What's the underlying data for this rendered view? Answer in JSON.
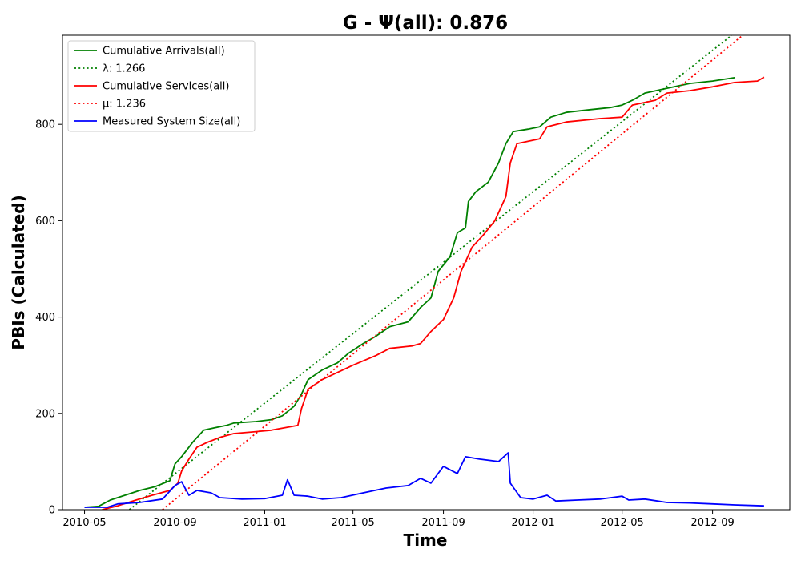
{
  "chart_data": {
    "type": "line",
    "title": "G -  Ψ(all): 0.876",
    "xlabel": "Time",
    "ylabel": "PBIs (Calculated)",
    "xlim": [
      "2010-04-01",
      "2012-12-15"
    ],
    "ylim": [
      0,
      985
    ],
    "x_ticks": [
      "2010-05",
      "2010-09",
      "2011-01",
      "2011-05",
      "2011-09",
      "2012-01",
      "2012-05",
      "2012-09"
    ],
    "y_ticks": [
      0,
      200,
      400,
      600,
      800
    ],
    "grid": false,
    "legend_position": "upper left",
    "series": [
      {
        "name": "Cumulative Arrivals(all)",
        "color": "#008000",
        "style": "solid",
        "points": [
          [
            "2010-05-01",
            5
          ],
          [
            "2010-05-20",
            7
          ],
          [
            "2010-06-05",
            20
          ],
          [
            "2010-06-25",
            30
          ],
          [
            "2010-07-15",
            40
          ],
          [
            "2010-08-05",
            48
          ],
          [
            "2010-08-25",
            60
          ],
          [
            "2010-09-01",
            95
          ],
          [
            "2010-09-10",
            110
          ],
          [
            "2010-09-25",
            140
          ],
          [
            "2010-10-10",
            165
          ],
          [
            "2010-10-25",
            170
          ],
          [
            "2010-11-10",
            175
          ],
          [
            "2010-11-20",
            180
          ],
          [
            "2010-12-20",
            183
          ],
          [
            "2011-01-10",
            187
          ],
          [
            "2011-01-25",
            195
          ],
          [
            "2011-02-10",
            215
          ],
          [
            "2011-02-20",
            240
          ],
          [
            "2011-03-01",
            270
          ],
          [
            "2011-03-20",
            290
          ],
          [
            "2011-04-10",
            305
          ],
          [
            "2011-04-25",
            325
          ],
          [
            "2011-05-15",
            345
          ],
          [
            "2011-06-01",
            360
          ],
          [
            "2011-06-20",
            380
          ],
          [
            "2011-07-15",
            390
          ],
          [
            "2011-08-01",
            420
          ],
          [
            "2011-08-15",
            440
          ],
          [
            "2011-08-25",
            495
          ],
          [
            "2011-09-10",
            525
          ],
          [
            "2011-09-20",
            575
          ],
          [
            "2011-10-01",
            585
          ],
          [
            "2011-10-05",
            640
          ],
          [
            "2011-10-15",
            660
          ],
          [
            "2011-11-01",
            680
          ],
          [
            "2011-11-15",
            720
          ],
          [
            "2011-11-25",
            760
          ],
          [
            "2011-12-05",
            785
          ],
          [
            "2011-12-25",
            790
          ],
          [
            "2012-01-10",
            795
          ],
          [
            "2012-01-25",
            815
          ],
          [
            "2012-02-15",
            825
          ],
          [
            "2012-03-15",
            830
          ],
          [
            "2012-04-15",
            835
          ],
          [
            "2012-05-01",
            840
          ],
          [
            "2012-05-15",
            850
          ],
          [
            "2012-06-01",
            865
          ],
          [
            "2012-07-01",
            875
          ],
          [
            "2012-08-01",
            885
          ],
          [
            "2012-09-01",
            890
          ],
          [
            "2012-10-01",
            897
          ]
        ]
      },
      {
        "name": "λ: 1.266",
        "color": "#008000",
        "style": "dotted",
        "points": [
          [
            "2010-07-01",
            0
          ],
          [
            "2012-09-27",
            985
          ]
        ]
      },
      {
        "name": "Cumulative Services(all)",
        "color": "#ff0000",
        "style": "solid",
        "points": [
          [
            "2010-05-25",
            0
          ],
          [
            "2010-06-15",
            8
          ],
          [
            "2010-07-10",
            20
          ],
          [
            "2010-08-01",
            30
          ],
          [
            "2010-08-25",
            40
          ],
          [
            "2010-09-05",
            55
          ],
          [
            "2010-09-10",
            80
          ],
          [
            "2010-09-20",
            105
          ],
          [
            "2010-10-01",
            130
          ],
          [
            "2010-10-15",
            140
          ],
          [
            "2010-11-01",
            150
          ],
          [
            "2010-11-20",
            158
          ],
          [
            "2010-12-20",
            162
          ],
          [
            "2011-01-10",
            165
          ],
          [
            "2011-02-15",
            175
          ],
          [
            "2011-02-20",
            210
          ],
          [
            "2011-03-01",
            250
          ],
          [
            "2011-03-20",
            270
          ],
          [
            "2011-04-10",
            285
          ],
          [
            "2011-05-01",
            300
          ],
          [
            "2011-06-01",
            320
          ],
          [
            "2011-06-20",
            335
          ],
          [
            "2011-07-20",
            340
          ],
          [
            "2011-08-01",
            345
          ],
          [
            "2011-08-15",
            370
          ],
          [
            "2011-09-01",
            395
          ],
          [
            "2011-09-15",
            440
          ],
          [
            "2011-09-25",
            495
          ],
          [
            "2011-10-10",
            545
          ],
          [
            "2011-10-25",
            570
          ],
          [
            "2011-11-10",
            600
          ],
          [
            "2011-11-25",
            650
          ],
          [
            "2011-12-01",
            720
          ],
          [
            "2011-12-10",
            760
          ],
          [
            "2012-01-10",
            770
          ],
          [
            "2012-01-20",
            795
          ],
          [
            "2012-02-15",
            805
          ],
          [
            "2012-04-01",
            812
          ],
          [
            "2012-05-01",
            815
          ],
          [
            "2012-05-15",
            840
          ],
          [
            "2012-06-15",
            850
          ],
          [
            "2012-07-01",
            865
          ],
          [
            "2012-08-01",
            870
          ],
          [
            "2012-09-01",
            878
          ],
          [
            "2012-10-01",
            887
          ],
          [
            "2012-11-01",
            890
          ],
          [
            "2012-11-10",
            898
          ]
        ]
      },
      {
        "name": "μ: 1.236",
        "color": "#ff0000",
        "style": "dotted",
        "points": [
          [
            "2010-08-15",
            0
          ],
          [
            "2012-10-12",
            985
          ]
        ]
      },
      {
        "name": "Measured System Size(all)",
        "color": "#0000ff",
        "style": "solid",
        "points": [
          [
            "2010-05-01",
            5
          ],
          [
            "2010-06-01",
            5
          ],
          [
            "2010-06-15",
            12
          ],
          [
            "2010-07-15",
            15
          ],
          [
            "2010-08-15",
            22
          ],
          [
            "2010-09-01",
            50
          ],
          [
            "2010-09-10",
            58
          ],
          [
            "2010-09-20",
            30
          ],
          [
            "2010-10-01",
            40
          ],
          [
            "2010-10-20",
            35
          ],
          [
            "2010-11-01",
            25
          ],
          [
            "2010-12-01",
            22
          ],
          [
            "2011-01-01",
            23
          ],
          [
            "2011-01-25",
            30
          ],
          [
            "2011-02-01",
            62
          ],
          [
            "2011-02-10",
            30
          ],
          [
            "2011-03-01",
            28
          ],
          [
            "2011-03-20",
            22
          ],
          [
            "2011-04-15",
            25
          ],
          [
            "2011-05-15",
            35
          ],
          [
            "2011-06-15",
            45
          ],
          [
            "2011-07-15",
            50
          ],
          [
            "2011-08-01",
            65
          ],
          [
            "2011-08-15",
            55
          ],
          [
            "2011-09-01",
            90
          ],
          [
            "2011-09-20",
            75
          ],
          [
            "2011-10-01",
            110
          ],
          [
            "2011-10-20",
            105
          ],
          [
            "2011-11-15",
            100
          ],
          [
            "2011-11-28",
            118
          ],
          [
            "2011-12-01",
            55
          ],
          [
            "2011-12-15",
            25
          ],
          [
            "2012-01-01",
            22
          ],
          [
            "2012-01-20",
            30
          ],
          [
            "2012-02-01",
            18
          ],
          [
            "2012-03-01",
            20
          ],
          [
            "2012-04-01",
            22
          ],
          [
            "2012-05-01",
            28
          ],
          [
            "2012-05-10",
            20
          ],
          [
            "2012-06-01",
            22
          ],
          [
            "2012-07-01",
            15
          ],
          [
            "2012-08-01",
            14
          ],
          [
            "2012-09-01",
            12
          ],
          [
            "2012-10-01",
            10
          ],
          [
            "2012-11-10",
            8
          ]
        ]
      }
    ]
  }
}
